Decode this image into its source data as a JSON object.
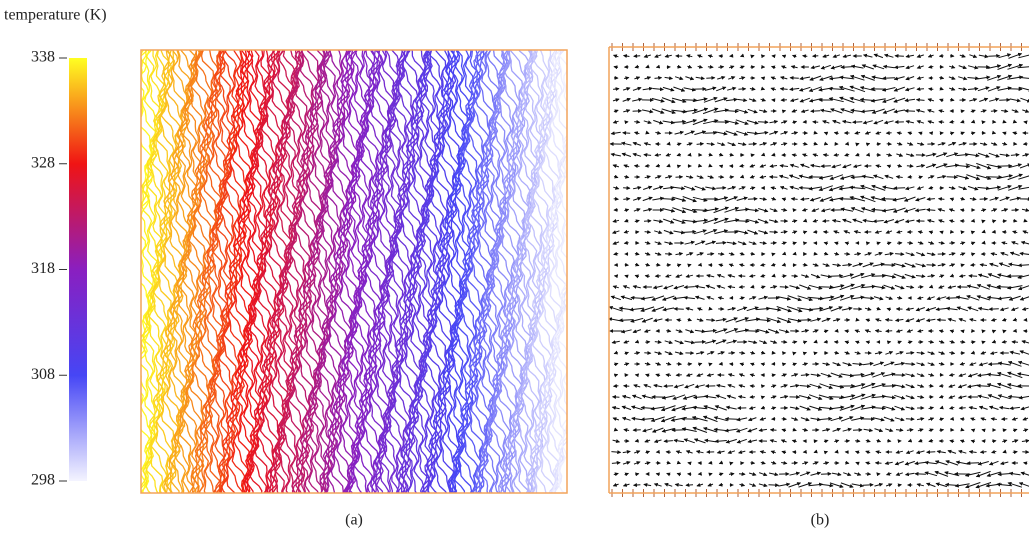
{
  "colorbar": {
    "label": "temperature (K)",
    "lim": [
      298,
      338
    ],
    "ticks": [
      298,
      308,
      318,
      328,
      338
    ],
    "colors": [
      "#f4f4ff",
      "#4646f5",
      "#8a1fc0",
      "#f01414",
      "#ffff22"
    ]
  },
  "panels": [
    {
      "label": "(a)"
    },
    {
      "label": "(b)"
    }
  ]
}
